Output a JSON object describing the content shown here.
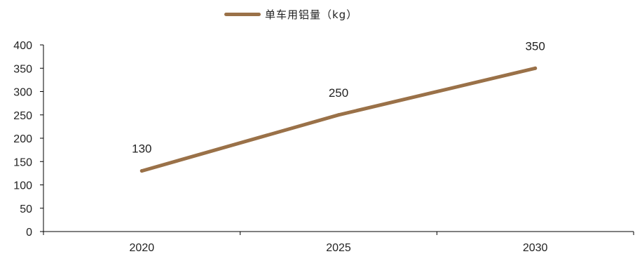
{
  "chart_data": {
    "type": "line",
    "x": [
      "2020",
      "2025",
      "2030"
    ],
    "series": [
      {
        "name": "单车用铝量（kg）",
        "values": [
          130,
          250,
          350
        ],
        "color": "#9A7148"
      }
    ],
    "data_labels": [
      "130",
      "250",
      "350"
    ],
    "ylim": [
      0,
      400
    ],
    "yticks": [
      "0",
      "50",
      "100",
      "150",
      "200",
      "250",
      "300",
      "350",
      "400"
    ],
    "grid": false,
    "legend_position": "top-center"
  }
}
